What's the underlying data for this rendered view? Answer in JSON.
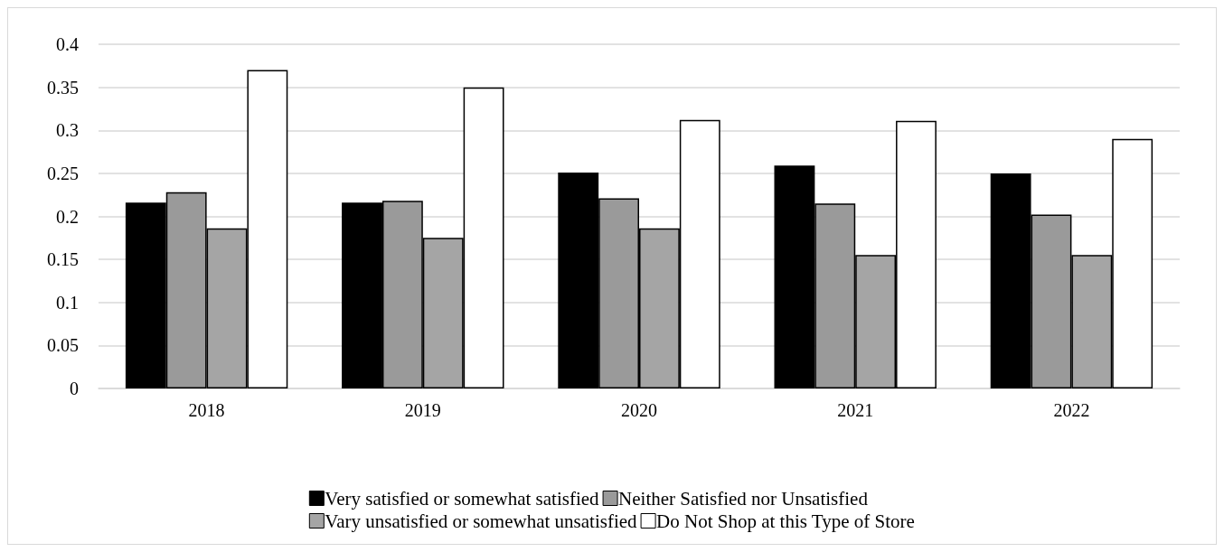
{
  "chart_data": {
    "type": "bar",
    "categories": [
      "2018",
      "2019",
      "2020",
      "2021",
      "2022"
    ],
    "series": [
      {
        "name": "Very satisfied or somewhat satisfied",
        "color": "#000000",
        "values": [
          0.216,
          0.216,
          0.251,
          0.259,
          0.25
        ]
      },
      {
        "name": "Neither Satisfied nor Unsatisfied",
        "color": "#9a9a9a",
        "values": [
          0.228,
          0.218,
          0.221,
          0.215,
          0.202
        ]
      },
      {
        "name": "Vary unsatisfied or somewhat unsatisfied",
        "color": "#a5a5a5",
        "values": [
          0.186,
          0.175,
          0.186,
          0.155,
          0.155
        ]
      },
      {
        "name": "Do Not Shop at this Type of Store",
        "color": "#ffffff",
        "values": [
          0.37,
          0.35,
          0.312,
          0.311,
          0.29
        ]
      }
    ],
    "ylim": [
      0,
      0.4
    ],
    "yticks": [
      0,
      0.05,
      0.1,
      0.15,
      0.2,
      0.25,
      0.3,
      0.35,
      0.4
    ],
    "grid": "y",
    "legend": "bottom"
  }
}
